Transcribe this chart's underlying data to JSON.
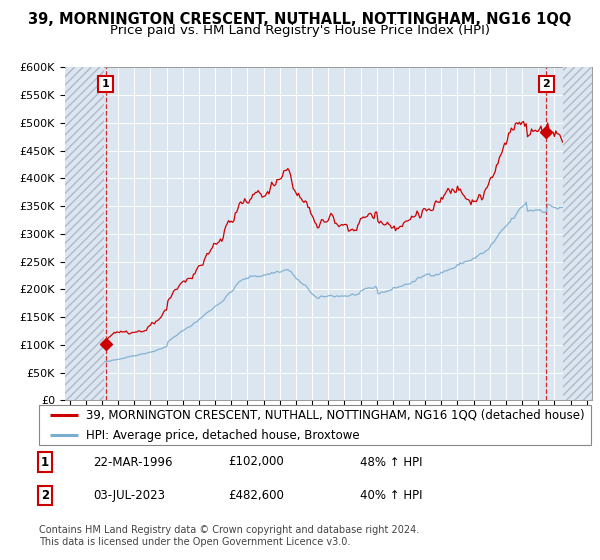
{
  "title": "39, MORNINGTON CRESCENT, NUTHALL, NOTTINGHAM, NG16 1QQ",
  "subtitle": "Price paid vs. HM Land Registry's House Price Index (HPI)",
  "ylim": [
    0,
    600000
  ],
  "yticks": [
    0,
    50000,
    100000,
    150000,
    200000,
    250000,
    300000,
    350000,
    400000,
    450000,
    500000,
    550000,
    600000
  ],
  "ytick_labels": [
    "£0",
    "£50K",
    "£100K",
    "£150K",
    "£200K",
    "£250K",
    "£300K",
    "£350K",
    "£400K",
    "£450K",
    "£500K",
    "£550K",
    "£600K"
  ],
  "xlim_start": 1993.7,
  "xlim_end": 2026.3,
  "outer_bg": "#ffffff",
  "plot_bg_color": "#dce6f1",
  "grid_color": "#ffffff",
  "red_line_color": "#cc0000",
  "blue_line_color": "#7aadcf",
  "marker_color": "#cc0000",
  "title_fontsize": 10.5,
  "subtitle_fontsize": 9.5,
  "legend_fontsize": 8.5,
  "tick_fontsize": 8,
  "footnote_fontsize": 7,
  "purchase1_x": 1996.22,
  "purchase1_y": 102000,
  "purchase1_label": "1",
  "purchase2_x": 2023.5,
  "purchase2_y": 482600,
  "purchase2_label": "2",
  "legend_line1": "39, MORNINGTON CRESCENT, NUTHALL, NOTTINGHAM, NG16 1QQ (detached house)",
  "legend_line2": "HPI: Average price, detached house, Broxtowe",
  "table_row1": [
    "1",
    "22-MAR-1996",
    "£102,000",
    "48% ↑ HPI"
  ],
  "table_row2": [
    "2",
    "03-JUL-2023",
    "£482,600",
    "40% ↑ HPI"
  ],
  "footnote": "Contains HM Land Registry data © Crown copyright and database right 2024.\nThis data is licensed under the Open Government Licence v3.0."
}
